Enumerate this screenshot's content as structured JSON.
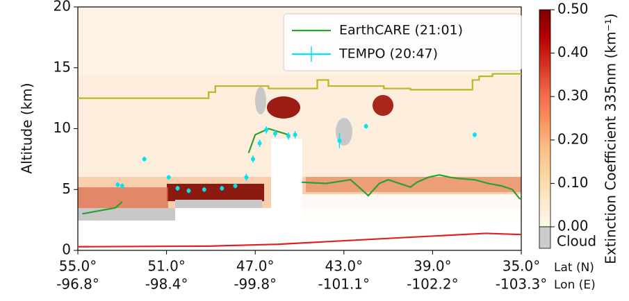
{
  "chart_data": {
    "type": "line",
    "ylabel": "Altitude (km)",
    "xlim": [
      55,
      35
    ],
    "ylim": [
      0,
      20
    ],
    "yticks": [
      0,
      5,
      10,
      15,
      20
    ],
    "xticks": [
      {
        "value": 55,
        "label": "55.0°"
      },
      {
        "value": 51,
        "label": "51.0°"
      },
      {
        "value": 47,
        "label": "47.0°"
      },
      {
        "value": 43,
        "label": "43.0°"
      },
      {
        "value": 39,
        "label": "39.0°"
      },
      {
        "value": 35,
        "label": "35.0°"
      }
    ],
    "lon_tick_labels": [
      "-96.8°",
      "-98.4°",
      "-99.8°",
      "-101.1°",
      "-102.2°",
      "-103.3°"
    ],
    "xlabel": "Lat (N)",
    "xlabel2": "Lon (E)",
    "legend": "upper right",
    "series": [
      {
        "name": "EarthCARE (21:01)",
        "color": "#2ca02c",
        "x": [
          54.8,
          53.3,
          53.0,
          50.0,
          47.3,
          47.0,
          46.4,
          45.5,
          45.2,
          44.9,
          43.8,
          42.7,
          42.2,
          41.9,
          41.4,
          41.0,
          40.5,
          40.0,
          39.7,
          39.2,
          38.7,
          38.2,
          37.8,
          37.1,
          36.5,
          35.9,
          35.4,
          35.1,
          35.0
        ],
        "values": [
          3.0,
          3.5,
          4.0,
          null,
          8.0,
          9.5,
          10.0,
          9.5,
          null,
          5.6,
          5.5,
          5.8,
          5.0,
          4.5,
          5.5,
          5.8,
          5.5,
          5.2,
          5.6,
          6.0,
          6.2,
          6.0,
          5.9,
          5.8,
          5.5,
          5.3,
          5.0,
          4.3,
          4.2
        ]
      },
      {
        "name": "TEMPO (20:47)",
        "color": "#00e5ee",
        "x": [
          53.2,
          53.0,
          52.0,
          50.9,
          50.5,
          50.0,
          49.3,
          48.5,
          47.9,
          47.4,
          47.1,
          46.8,
          46.5,
          46.1,
          45.5,
          45.2,
          43.2,
          42.0,
          37.1
        ],
        "values": [
          5.4,
          5.3,
          7.5,
          6.0,
          5.1,
          4.9,
          5.0,
          5.1,
          5.3,
          6.0,
          7.5,
          8.8,
          9.9,
          9.6,
          9.4,
          9.5,
          9.0,
          10.2,
          9.5
        ],
        "errors": [
          0.2,
          0.2,
          0.2,
          0.2,
          0.2,
          0.2,
          0.2,
          0.2,
          0.2,
          0.3,
          0.3,
          0.3,
          0.3,
          0.3,
          0.3,
          0.3,
          0.6,
          0.2,
          0.2
        ]
      },
      {
        "color": "#b8b820",
        "x": [
          55,
          49.1,
          49.1,
          48.8,
          48.8,
          46.4,
          46.4,
          44.2,
          44.2,
          43.7,
          43.7,
          41.2,
          41.2,
          40.0,
          40.0,
          37.2,
          37.2,
          36.9,
          36.9,
          36.3,
          36.3,
          35.0
        ],
        "values": [
          12.5,
          12.5,
          13.0,
          13.0,
          13.5,
          13.5,
          13.3,
          13.3,
          14.0,
          14.0,
          13.5,
          13.5,
          13.3,
          13.3,
          13.2,
          13.2,
          14.0,
          14.0,
          14.3,
          14.3,
          14.5,
          14.5
        ]
      },
      {
        "color": "#e02020",
        "x": [
          55,
          49.1,
          46.0,
          42.9,
          39.8,
          36.6,
          35.0
        ],
        "values": [
          0.3,
          0.35,
          0.5,
          0.8,
          1.1,
          1.4,
          1.3
        ]
      }
    ],
    "colorbar": {
      "label": "Extinction Coefficient 335nm (km⁻¹)",
      "lim": [
        0,
        0.5
      ],
      "ticks": [
        {
          "value": 0,
          "label": "0.00"
        },
        {
          "value": 0.1,
          "label": "0.10"
        },
        {
          "value": 0.2,
          "label": "0.20"
        },
        {
          "value": 0.3,
          "label": "0.30"
        },
        {
          "value": 0.4,
          "label": "0.40"
        },
        {
          "value": 0.5,
          "label": "0.50"
        }
      ],
      "colormap": [
        "#fff7ec",
        "#fee8c8",
        "#fdd49e",
        "#fdbb84",
        "#fc8d59",
        "#ef6548",
        "#d7301f",
        "#b30000",
        "#7f0000"
      ],
      "cloud_label": "Cloud",
      "cloud_color": "#cccccc"
    }
  }
}
